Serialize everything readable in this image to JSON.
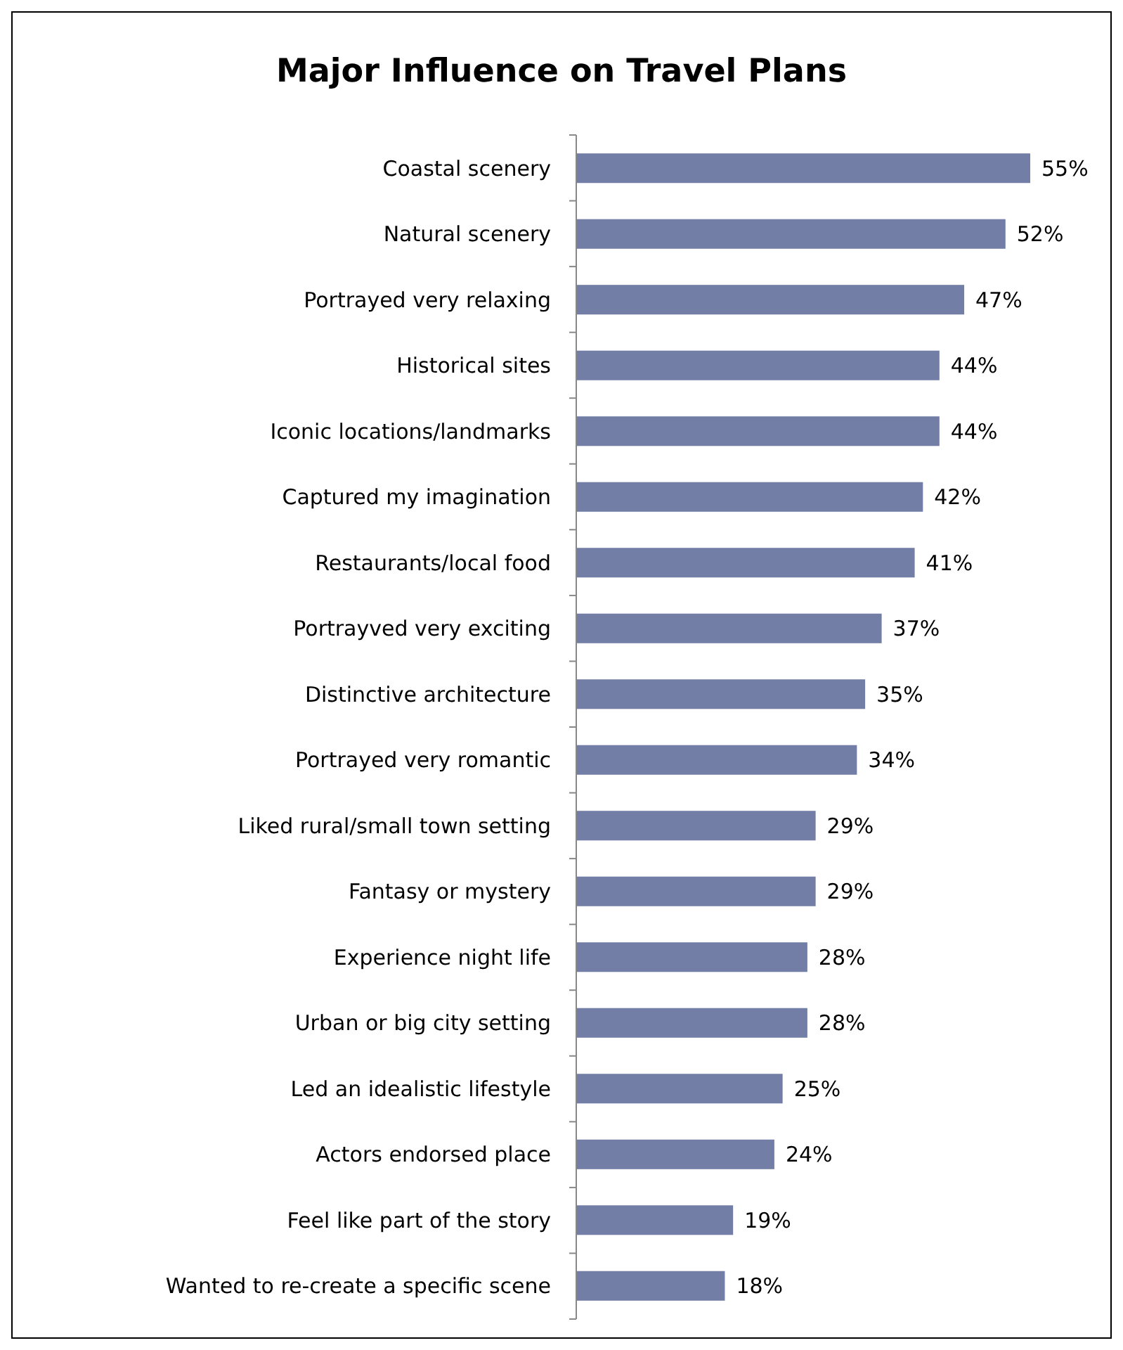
{
  "chart_data": {
    "type": "bar",
    "orientation": "horizontal",
    "title": "Major Influence on Travel Plans",
    "categories": [
      "Coastal scenery",
      "Natural scenery",
      "Portrayed very relaxing",
      "Historical sites",
      "Iconic locations/landmarks",
      "Captured my imagination",
      "Restaurants/local food",
      "Portrayved very exciting",
      "Distinctive architecture",
      "Portrayed very romantic",
      "Liked rural/small town setting",
      "Fantasy or mystery",
      "Experience night life",
      "Urban or big city setting",
      "Led an idealistic lifestyle",
      "Actors endorsed place",
      "Feel like part of the story",
      "Wanted to re-create a specific scene"
    ],
    "values": [
      55,
      52,
      47,
      44,
      44,
      42,
      41,
      37,
      35,
      34,
      29,
      29,
      28,
      28,
      25,
      24,
      19,
      18
    ],
    "value_labels": [
      "55%",
      "52%",
      "47%",
      "44%",
      "44%",
      "42%",
      "41%",
      "37%",
      "35%",
      "34%",
      "29%",
      "29%",
      "28%",
      "28%",
      "25%",
      "24%",
      "19%",
      "18%"
    ],
    "color": "#737ea6"
  }
}
